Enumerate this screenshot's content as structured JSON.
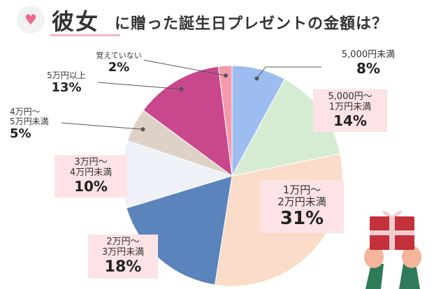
{
  "title": {
    "emphasis": "彼女",
    "rest": "に贈った誕生日プレゼントの金額は？"
  },
  "chart_data": {
    "type": "pie",
    "slices": [
      {
        "label": "5,000円未満",
        "value": 8,
        "percent": "8%",
        "color": "#9dbdf0"
      },
      {
        "label": "5,000円～1万円未満",
        "value": 14,
        "percent": "14%",
        "color": "#d5ecd3"
      },
      {
        "label": "1万円～2万円未満",
        "value": 31,
        "percent": "31%",
        "color": "#fbdcc8"
      },
      {
        "label": "2万円～3万円未満",
        "value": 18,
        "percent": "18%",
        "color": "#5a84bb"
      },
      {
        "label": "3万円～4万円未満",
        "value": 10,
        "percent": "10%",
        "color": "#eef2f8"
      },
      {
        "label": "4万円～5万円未満",
        "value": 5,
        "percent": "5%",
        "color": "#ded2c6"
      },
      {
        "label": "5万円以上",
        "value": 13,
        "percent": "13%",
        "color": "#c9478c"
      },
      {
        "label": "覚えていない",
        "value": 2,
        "percent": "2%",
        "color": "#f49bab"
      }
    ],
    "labels": {
      "s0": {
        "t1": "5,000円未満",
        "p": "8%"
      },
      "s1": {
        "t1": "5,000円～",
        "t2": "1万円未満",
        "p": "14%"
      },
      "s2": {
        "t1": "1万円～",
        "t2": "2万円未満",
        "p": "31%"
      },
      "s3": {
        "t1": "2万円～",
        "t2": "3万円未満",
        "p": "18%"
      },
      "s4": {
        "t1": "3万円～",
        "t2": "4万円未満",
        "p": "10%"
      },
      "s5": {
        "t1": "4万円～",
        "t2": "5万円未満",
        "p": "5%"
      },
      "s6": {
        "t1": "5万円以上",
        "p": "13%"
      },
      "s7": {
        "t1": "覚えていない",
        "p": "2%"
      }
    }
  },
  "icons": {
    "title_badge": "heart-icon",
    "illustration": "gift-box-illustration"
  }
}
